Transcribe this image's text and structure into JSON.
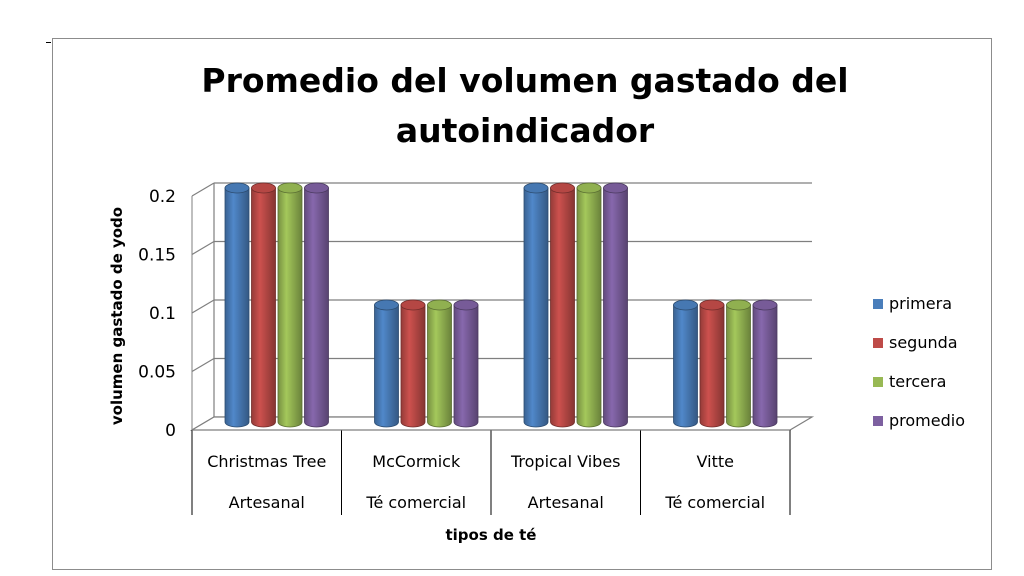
{
  "chart_data": {
    "type": "bar",
    "title_lines": [
      "Promedio del volumen gastado del",
      "autoindicador"
    ],
    "ylabel": "volumen gastado de yodo",
    "xlabel": "tipos de té",
    "ylim": [
      0,
      0.2
    ],
    "yticks": [
      "0",
      "0.05",
      "0.1",
      "0.15",
      "0.2"
    ],
    "categories": [
      "Christmas Tree",
      "McCormick",
      "Tropical Vibes",
      "Vitte"
    ],
    "category_groups": [
      "Artesanal",
      "Té comercial",
      "Artesanal",
      "Té comercial"
    ],
    "series": [
      {
        "name": "primera",
        "values": [
          0.2,
          0.1,
          0.2,
          0.1
        ],
        "color": "#4a7ebb"
      },
      {
        "name": "segunda",
        "values": [
          0.2,
          0.1,
          0.2,
          0.1
        ],
        "color": "#be4b48"
      },
      {
        "name": "tercera",
        "values": [
          0.2,
          0.1,
          0.2,
          0.1
        ],
        "color": "#98b954"
      },
      {
        "name": "promedio",
        "values": [
          0.2,
          0.1,
          0.2,
          0.1
        ],
        "color": "#7d60a0"
      }
    ],
    "grid": true,
    "legend_position": "right"
  }
}
